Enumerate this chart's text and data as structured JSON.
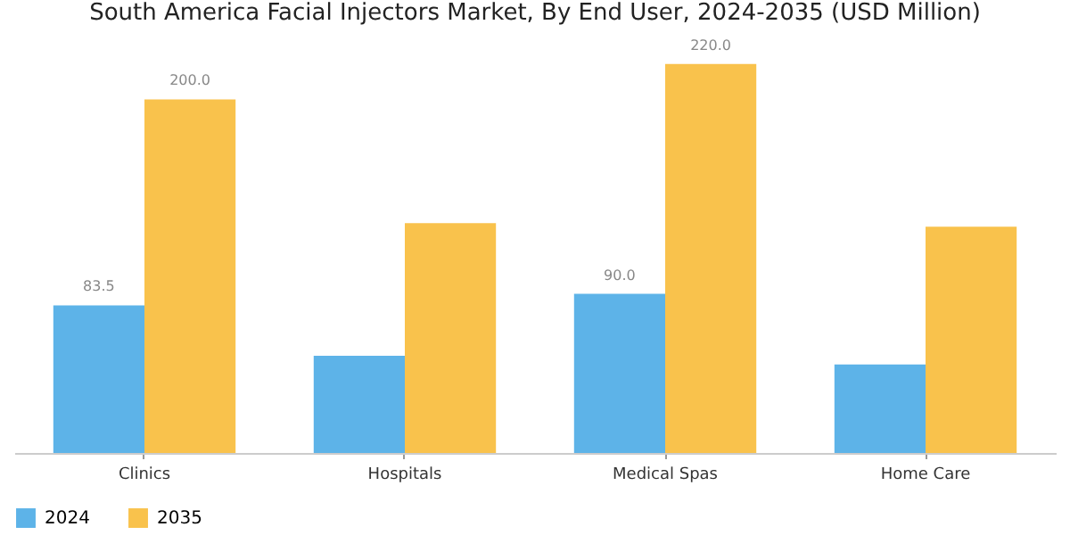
{
  "chart_data": {
    "type": "bar",
    "title": "South America Facial Injectors Market, By End User, 2024-2035 (USD Million)",
    "categories": [
      "Clinics",
      "Hospitals",
      "Medical Spas",
      "Home Care"
    ],
    "series": [
      {
        "name": "2024",
        "color": "#5db3e8",
        "values": [
          83.5,
          55,
          90,
          50
        ],
        "value_labels": [
          "83.5",
          null,
          "90.0",
          null
        ]
      },
      {
        "name": "2035",
        "color": "#f9c24c",
        "values": [
          200.0,
          130,
          220.0,
          128
        ],
        "value_labels": [
          "200.0",
          null,
          "220.0",
          null
        ]
      }
    ],
    "legend": "bottom",
    "grid": false
  }
}
